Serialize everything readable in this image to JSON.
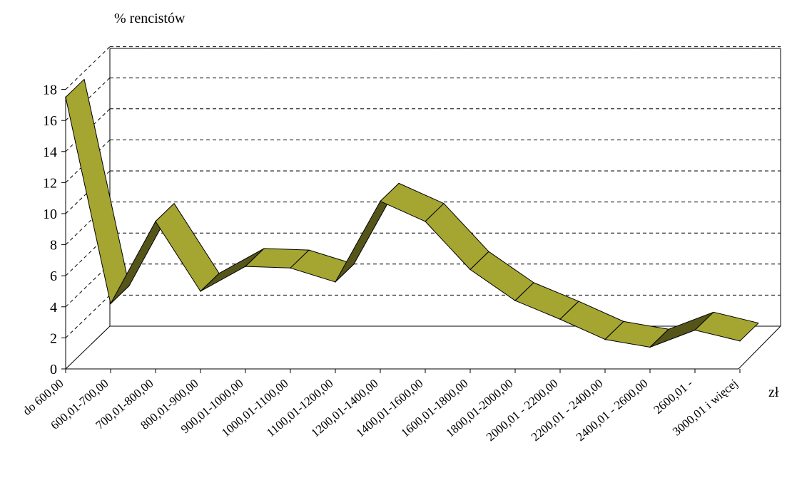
{
  "chart_data": {
    "type": "area",
    "ylabel": "% rencistów",
    "xlabel": "zł",
    "ylim": [
      0,
      18
    ],
    "yticks": [
      0,
      2,
      4,
      6,
      8,
      10,
      12,
      14,
      16,
      18
    ],
    "grid": true,
    "legend": "none",
    "categories": [
      "do 600,00",
      "600,01-700,00",
      "700,01-800,00",
      "800,01-900,00",
      "900,01-1000,00",
      "1000,01-1100,00",
      "1100,01-1200,00",
      "1200,01-1400,00",
      "1400,01-1600,00",
      "1600,01-1800,00",
      "1800,01-2000,00",
      "2000,01 - 2200,00",
      "2200,01 - 2400,00",
      "2400,01 - 2600,00",
      "2600,01 -",
      "3000,01 i więcej"
    ],
    "values": [
      17.5,
      4.2,
      9.5,
      5.0,
      6.6,
      6.5,
      5.6,
      10.8,
      9.5,
      6.4,
      4.4,
      3.2,
      1.9,
      1.4,
      2.5,
      1.8
    ],
    "colors": {
      "ribbon": "#a5a532",
      "ribbon_dark": "#55551a",
      "stroke": "#000000",
      "grid": "#000000"
    }
  }
}
